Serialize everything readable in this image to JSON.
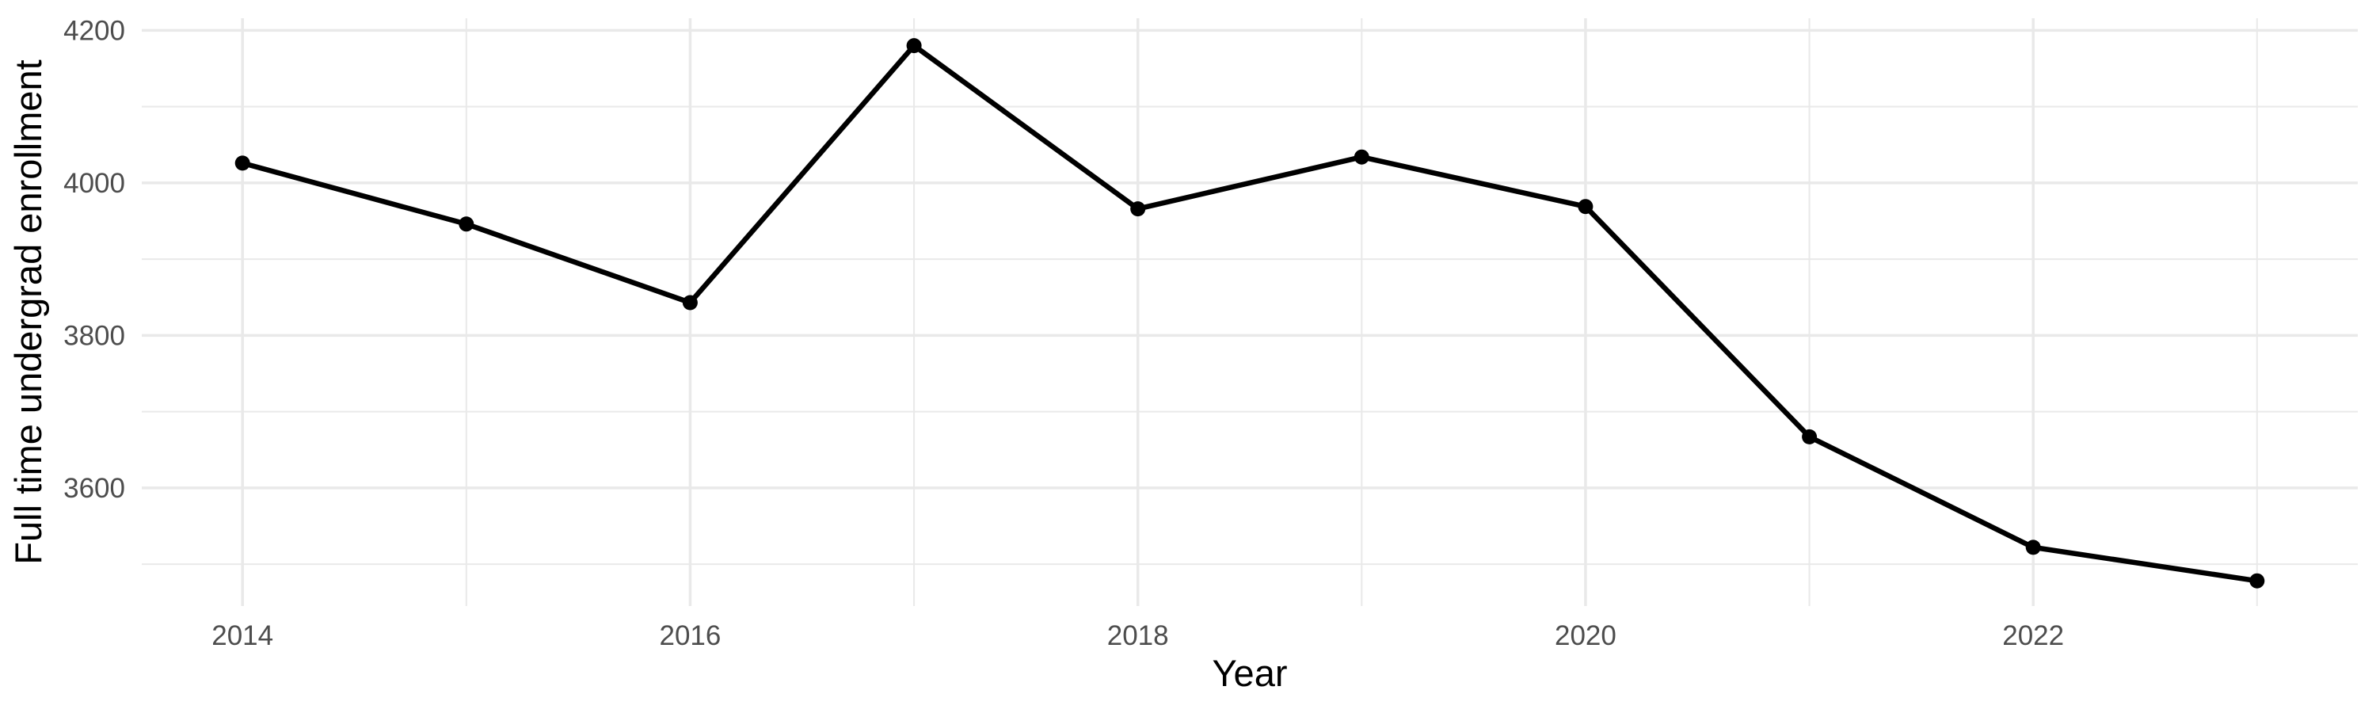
{
  "chart_data": {
    "type": "line",
    "title": "",
    "xlabel": "Year",
    "ylabel": "Full time undergrad enrollment",
    "x": [
      2014,
      2015,
      2016,
      2017,
      2018,
      2019,
      2020,
      2021,
      2022,
      2023
    ],
    "values": [
      4026,
      3946,
      3843,
      4180,
      3966,
      4034,
      3969,
      3667,
      3522,
      3478
    ],
    "x_ticks": [
      2014,
      2016,
      2018,
      2020,
      2022
    ],
    "x_minor_ticks": [
      2015,
      2017,
      2019,
      2021,
      2023
    ],
    "y_ticks": [
      3600,
      3800,
      4000,
      4200
    ],
    "y_minor_ticks": [
      3500,
      3700,
      3900,
      4100
    ],
    "xlim": [
      2013.55,
      2023.45
    ],
    "ylim": [
      3445,
      4216
    ],
    "grid": true,
    "legend": "none",
    "colors": {
      "line": "#000000",
      "point": "#000000",
      "grid": "#e9e9e9",
      "tick_label": "#4d4d4d",
      "axis_title": "#000000",
      "background": "#ffffff"
    }
  }
}
